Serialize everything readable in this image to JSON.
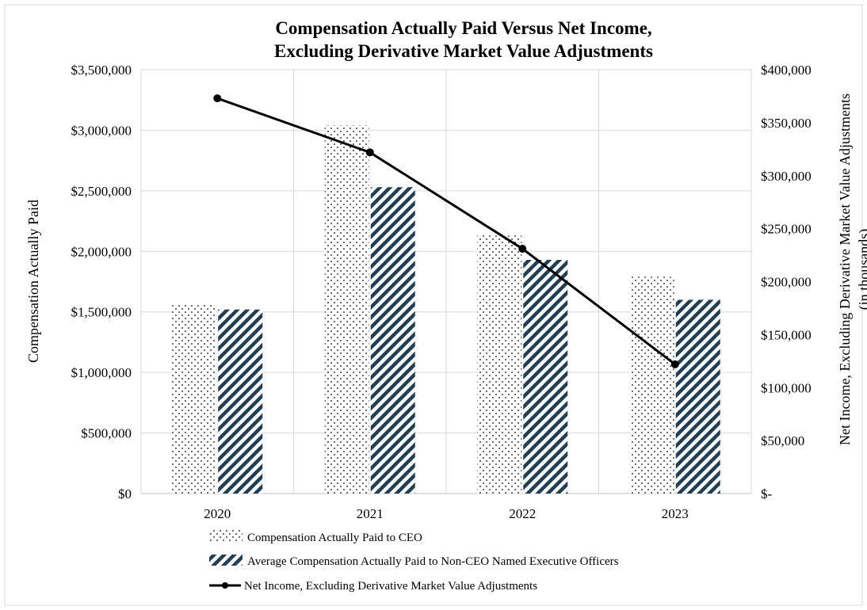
{
  "chart_data": {
    "type": "bar",
    "title": "Compensation Actually Paid Versus Net Income,",
    "subtitle": "Excluding Derivative Market Value Adjustments",
    "categories": [
      "2020",
      "2021",
      "2022",
      "2023"
    ],
    "ylabel": "Compensation Actually Paid",
    "y2label_line1": "Net Income, Excluding Derivative Market Value Adjustments",
    "y2label_line2": "(in thousands)",
    "ylim": [
      0,
      3500000
    ],
    "y2lim": [
      0,
      400000
    ],
    "yticks": [
      "$0",
      "$500,000",
      "$1,000,000",
      "$1,500,000",
      "$2,000,000",
      "$2,500,000",
      "$3,000,000",
      "$3,500,000"
    ],
    "y2ticks": [
      "$-",
      "$50,000",
      "$100,000",
      "$150,000",
      "$200,000",
      "$250,000",
      "$300,000",
      "$350,000",
      "$400,000"
    ],
    "grid": true,
    "legend_position": "bottom",
    "series": [
      {
        "name": "Compensation Actually Paid to CEO",
        "kind": "bar",
        "axis": "left",
        "pattern": "dots",
        "color": "#000000",
        "values": [
          1570000,
          3040000,
          2130000,
          1790000
        ]
      },
      {
        "name": "Average Compensation Actually Paid to Non-CEO Named Executive Officers",
        "kind": "bar",
        "axis": "left",
        "pattern": "diagonal-stripes",
        "color": "#1f3f57",
        "values": [
          1520000,
          2530000,
          1930000,
          1600000
        ]
      },
      {
        "name": "Net Income, Excluding Derivative Market Value Adjustments",
        "kind": "line",
        "axis": "right",
        "color": "#000000",
        "values": [
          373000,
          322000,
          231000,
          122000
        ]
      }
    ]
  }
}
